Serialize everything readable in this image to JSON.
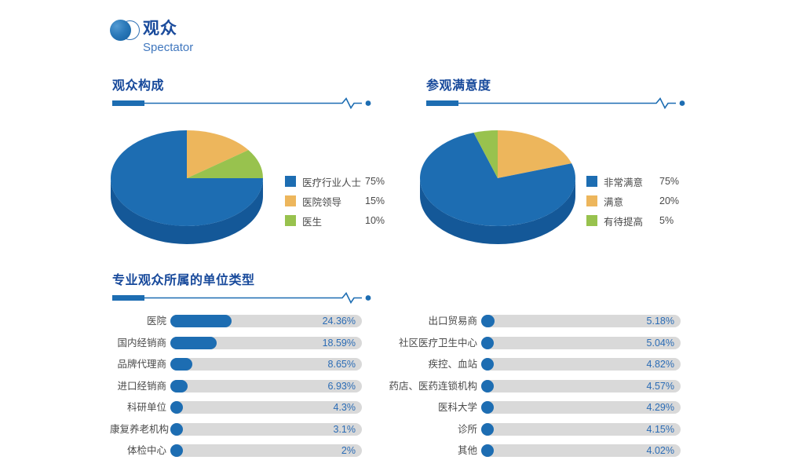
{
  "page": {
    "title": "观众",
    "subtitle": "Spectator"
  },
  "sections": {
    "composition": {
      "title": "观众构成"
    },
    "satisfaction": {
      "title": "参观满意度"
    },
    "units": {
      "title": "专业观众所属的单位类型"
    }
  },
  "colors": {
    "blue": "#1D6DB2",
    "blue_side": "#145898",
    "orange": "#EDB65C",
    "green": "#98C24E",
    "track_gray": "#D9D9D9",
    "value_text": "#2B6CB5",
    "header_text": "#17499B"
  },
  "chart_data": [
    {
      "type": "pie",
      "title": "观众构成",
      "labels": [
        "医疗行业人士",
        "医院领导",
        "医生"
      ],
      "values": [
        75,
        15,
        10
      ],
      "value_labels": [
        "75%",
        "15%",
        "10%"
      ],
      "legend_position": "right",
      "side_color": "#145898",
      "legend": [
        {
          "label": "医疗行业人士",
          "value_label": "75%",
          "color": "#1D6DB2"
        },
        {
          "label": "医院领导",
          "value_label": "15%",
          "color": "#EDB65C"
        },
        {
          "label": "医生",
          "value_label": "10%",
          "color": "#98C24E"
        }
      ],
      "slices_draw_order": [
        {
          "label": "医院领导",
          "value": 15,
          "color": "#EDB65C"
        },
        {
          "label": "医生",
          "value": 10,
          "color": "#98C24E"
        },
        {
          "label": "医疗行业人士",
          "value": 75,
          "color": "#1D6DB2"
        }
      ]
    },
    {
      "type": "pie",
      "title": "参观满意度",
      "labels": [
        "非常满意",
        "满意",
        "有待提高"
      ],
      "values": [
        75,
        20,
        5
      ],
      "value_labels": [
        "75%",
        "20%",
        "5%"
      ],
      "legend_position": "right",
      "side_color": "#145898",
      "legend": [
        {
          "label": "非常满意",
          "value_label": "75%",
          "color": "#1D6DB2"
        },
        {
          "label": "满意",
          "value_label": "20%",
          "color": "#EDB65C"
        },
        {
          "label": "有待提高",
          "value_label": "5%",
          "color": "#98C24E"
        }
      ],
      "slices_draw_order": [
        {
          "label": "满意",
          "value": 20,
          "color": "#EDB65C"
        },
        {
          "label": "非常满意",
          "value": 75,
          "color": "#1D6DB2"
        },
        {
          "label": "有待提高",
          "value": 5,
          "color": "#98C24E"
        }
      ]
    },
    {
      "type": "bar",
      "title": "专业观众所属的单位类型",
      "orientation": "horizontal",
      "columns": [
        {
          "items": [
            {
              "label": "医院",
              "value": 24.36,
              "value_label": "24.36%"
            },
            {
              "label": "国内经销商",
              "value": 18.59,
              "value_label": "18.59%"
            },
            {
              "label": "品牌代理商",
              "value": 8.65,
              "value_label": "8.65%"
            },
            {
              "label": "进口经销商",
              "value": 6.93,
              "value_label": "6.93%"
            },
            {
              "label": "科研单位",
              "value": 4.3,
              "value_label": "4.3%"
            },
            {
              "label": "康复养老机构",
              "value": 3.1,
              "value_label": "3.1%"
            },
            {
              "label": "体检中心",
              "value": 2,
              "value_label": "2%"
            }
          ]
        },
        {
          "items": [
            {
              "label": "出口贸易商",
              "value": 5.18,
              "value_label": "5.18%"
            },
            {
              "label": "社区医疗卫生中心",
              "value": 5.04,
              "value_label": "5.04%"
            },
            {
              "label": "疾控、血站",
              "value": 4.82,
              "value_label": "4.82%"
            },
            {
              "label": "药店、医药连锁机构",
              "value": 4.57,
              "value_label": "4.57%"
            },
            {
              "label": "医科大学",
              "value": 4.29,
              "value_label": "4.29%"
            },
            {
              "label": "诊所",
              "value": 4.15,
              "value_label": "4.15%"
            },
            {
              "label": "其他",
              "value": 4.02,
              "value_label": "4.02%"
            }
          ]
        }
      ]
    }
  ]
}
